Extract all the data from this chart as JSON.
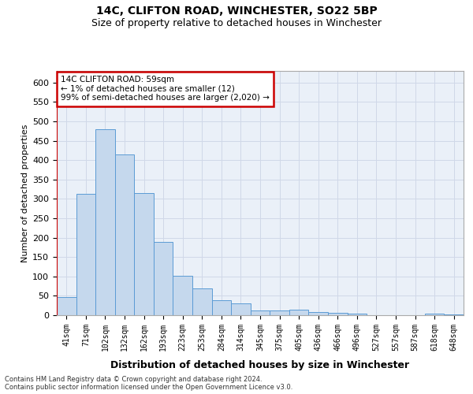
{
  "title_line1": "14C, CLIFTON ROAD, WINCHESTER, SO22 5BP",
  "title_line2": "Size of property relative to detached houses in Winchester",
  "xlabel": "Distribution of detached houses by size in Winchester",
  "ylabel": "Number of detached properties",
  "bar_labels": [
    "41sqm",
    "71sqm",
    "102sqm",
    "132sqm",
    "162sqm",
    "193sqm",
    "223sqm",
    "253sqm",
    "284sqm",
    "314sqm",
    "345sqm",
    "375sqm",
    "405sqm",
    "436sqm",
    "466sqm",
    "496sqm",
    "527sqm",
    "557sqm",
    "587sqm",
    "618sqm",
    "648sqm"
  ],
  "bar_values": [
    46,
    312,
    480,
    415,
    315,
    190,
    102,
    70,
    38,
    30,
    13,
    13,
    14,
    8,
    6,
    4,
    1,
    0,
    0,
    4,
    3
  ],
  "bar_color": "#c5d8ed",
  "bar_edge_color": "#5b9bd5",
  "annotation_text": "14C CLIFTON ROAD: 59sqm\n← 1% of detached houses are smaller (12)\n99% of semi-detached houses are larger (2,020) →",
  "annotation_box_color": "#ffffff",
  "annotation_box_edge_color": "#cc0000",
  "grid_color": "#d0d8e8",
  "background_color": "#eaf0f8",
  "ylim": [
    0,
    630
  ],
  "yticks": [
    0,
    50,
    100,
    150,
    200,
    250,
    300,
    350,
    400,
    450,
    500,
    550,
    600
  ],
  "vline_color": "#cc0000",
  "footer_line1": "Contains HM Land Registry data © Crown copyright and database right 2024.",
  "footer_line2": "Contains public sector information licensed under the Open Government Licence v3.0."
}
